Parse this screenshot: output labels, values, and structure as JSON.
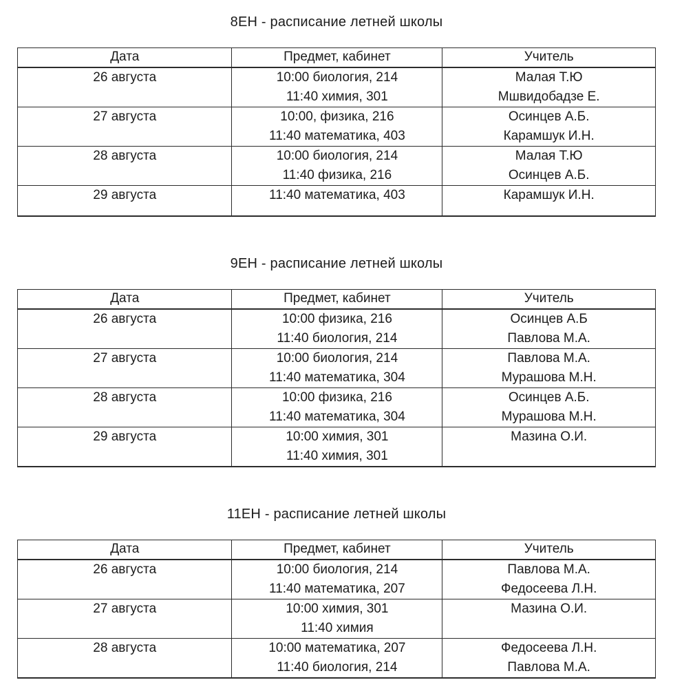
{
  "page": {
    "background_color": "#ffffff",
    "text_color": "#1c1c1c",
    "border_color": "#2b2b2b"
  },
  "columns": [
    "Дата",
    "Предмет, кабинет",
    "Учитель"
  ],
  "tables": [
    {
      "title": "8ЕН - расписание летней школы",
      "rows": [
        {
          "date": "26 августа",
          "subjects": [
            "10:00 биология, 214",
            "11:40 химия, 301"
          ],
          "teachers": [
            "Малая Т.Ю",
            "Мшвидобадзе Е."
          ]
        },
        {
          "date": "27 августа",
          "subjects": [
            "10:00, физика, 216",
            "11:40 математика, 403"
          ],
          "teachers": [
            "Осинцев А.Б.",
            "Карамшук И.Н."
          ]
        },
        {
          "date": "28 августа",
          "subjects": [
            "10:00 биология, 214",
            "11:40 физика, 216"
          ],
          "teachers": [
            "Малая Т.Ю",
            "Осинцев А.Б."
          ]
        },
        {
          "date": "29 августа",
          "subjects": [
            "11:40 математика, 403"
          ],
          "teachers": [
            "Карамшук И.Н."
          ]
        }
      ]
    },
    {
      "title": "9ЕН - расписание летней школы",
      "rows": [
        {
          "date": "26 августа",
          "subjects": [
            "10:00 физика, 216",
            "11:40 биология, 214"
          ],
          "teachers": [
            "Осинцев А.Б",
            "Павлова М.А."
          ]
        },
        {
          "date": "27 августа",
          "subjects": [
            "10:00 биология, 214",
            "11:40 математика, 304"
          ],
          "teachers": [
            "Павлова М.А.",
            "Мурашова М.Н."
          ]
        },
        {
          "date": "28 августа",
          "subjects": [
            "10:00 физика, 216",
            "11:40 математика, 304"
          ],
          "teachers": [
            "Осинцев А.Б.",
            "Мурашова М.Н."
          ]
        },
        {
          "date": "29 августа",
          "subjects": [
            "10:00 химия, 301",
            "11:40 химия, 301"
          ],
          "teachers": [
            "Мазина О.И."
          ]
        }
      ]
    },
    {
      "title": "11ЕН - расписание летней школы",
      "rows": [
        {
          "date": "26 августа",
          "subjects": [
            "10:00 биология, 214",
            "11:40 математика, 207"
          ],
          "teachers": [
            "Павлова М.А.",
            "Федосеева Л.Н."
          ]
        },
        {
          "date": "27 августа",
          "subjects": [
            "10:00 химия, 301",
            "11:40 химия"
          ],
          "teachers": [
            "Мазина О.И."
          ]
        },
        {
          "date": "28 августа",
          "subjects": [
            "10:00 математика, 207",
            "11:40 биология, 214"
          ],
          "teachers": [
            "Федосеева Л.Н.",
            "Павлова М.А."
          ]
        }
      ]
    }
  ]
}
